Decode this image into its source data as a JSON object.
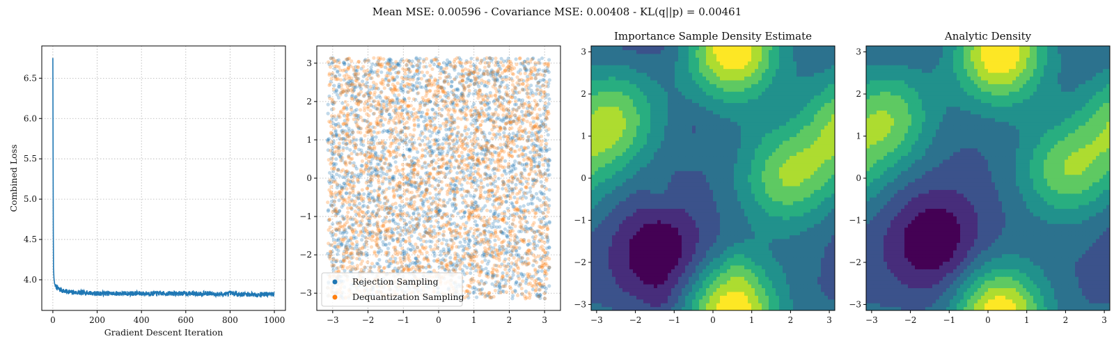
{
  "figure": {
    "suptitle": "Mean MSE: 0.00596 - Covariance MSE: 0.00408 - KL(q||p) = 0.00461"
  },
  "colors": {
    "loss_line": "#1f77b4",
    "rejection": "#1f77b4",
    "dequantization": "#ff7f0e",
    "grid": "#b0b0b0",
    "viridis_levels": [
      "#440154",
      "#472d7b",
      "#3b528b",
      "#2c728e",
      "#21918c",
      "#28ae80",
      "#5ec962",
      "#addc30",
      "#fde725"
    ]
  },
  "chart_data": [
    {
      "type": "line",
      "title": "",
      "xlabel": "Gradient Descent Iteration",
      "ylabel": "Combined Loss",
      "xlim": [
        -50,
        1050
      ],
      "ylim": [
        3.62,
        6.9
      ],
      "xticks": [
        0,
        200,
        400,
        600,
        800,
        1000
      ],
      "yticks": [
        4.0,
        4.5,
        5.0,
        5.5,
        6.0,
        6.5
      ],
      "grid": true,
      "series": [
        {
          "x": [
            0,
            1,
            2,
            3,
            5,
            8,
            12,
            20,
            30,
            50,
            75,
            100,
            150,
            200,
            250,
            300,
            350,
            400,
            450,
            500,
            550,
            600,
            650,
            700,
            750,
            800,
            850,
            900,
            950,
            999
          ],
          "values": [
            6.75,
            5.6,
            4.6,
            4.15,
            4.02,
            3.95,
            3.92,
            3.9,
            3.88,
            3.86,
            3.85,
            3.84,
            3.84,
            3.83,
            3.83,
            3.83,
            3.83,
            3.83,
            3.83,
            3.83,
            3.83,
            3.83,
            3.83,
            3.83,
            3.82,
            3.83,
            3.82,
            3.82,
            3.82,
            3.82
          ],
          "noise_amplitude": 0.03
        }
      ]
    },
    {
      "type": "scatter",
      "title": "",
      "xlim": [
        -3.45,
        3.45
      ],
      "ylim": [
        -3.45,
        3.45
      ],
      "xticks": [
        -3,
        -2,
        -1,
        0,
        1,
        2,
        3
      ],
      "yticks": [
        -3,
        -2,
        -1,
        0,
        1,
        2,
        3
      ],
      "grid": true,
      "point_range": [
        -3.1416,
        3.1416
      ],
      "approx_points_per_series": 2600,
      "legend_position": "lower-left",
      "series": [
        {
          "name": "Rejection Sampling"
        },
        {
          "name": "Dequantization Sampling"
        }
      ]
    },
    {
      "type": "heatmap",
      "title": "Importance Sample Density Estimate",
      "xlim": [
        -3.1416,
        3.1416
      ],
      "ylim": [
        -3.1416,
        3.1416
      ],
      "xticks": [
        -3,
        -2,
        -1,
        0,
        1,
        2,
        3
      ],
      "yticks": [
        -3,
        -2,
        -1,
        0,
        1,
        2,
        3
      ],
      "levels": 9,
      "density_bumps": [
        {
          "x": 1.85,
          "y": 0.0,
          "w": 1.0
        },
        {
          "x": -2.55,
          "y": 1.45,
          "w": 1.0
        },
        {
          "x": 0.5,
          "y": 2.9,
          "w": 0.85
        },
        {
          "x": 0.5,
          "y": -3.0,
          "w": 0.85
        },
        {
          "x": 3.0,
          "y": 0.7,
          "w": 0.45
        },
        {
          "x": -1.4,
          "y": -1.8,
          "w": -0.8
        }
      ],
      "noise": true
    },
    {
      "type": "heatmap",
      "title": "Analytic Density",
      "xlim": [
        -3.1416,
        3.1416
      ],
      "ylim": [
        -3.1416,
        3.1416
      ],
      "xticks": [
        -3,
        -2,
        -1,
        0,
        1,
        2,
        3
      ],
      "yticks": [
        -3,
        -2,
        -1,
        0,
        1,
        2,
        3
      ],
      "levels": 9,
      "density_bumps": [
        {
          "x": 1.95,
          "y": 0.15,
          "w": 1.0
        },
        {
          "x": -2.55,
          "y": 1.5,
          "w": 1.0
        },
        {
          "x": 0.3,
          "y": 2.8,
          "w": 0.9
        },
        {
          "x": 0.3,
          "y": -3.1,
          "w": 0.9
        },
        {
          "x": 3.0,
          "y": 0.7,
          "w": 0.4
        },
        {
          "x": -1.4,
          "y": -1.5,
          "w": -0.8
        }
      ],
      "noise": false
    }
  ]
}
